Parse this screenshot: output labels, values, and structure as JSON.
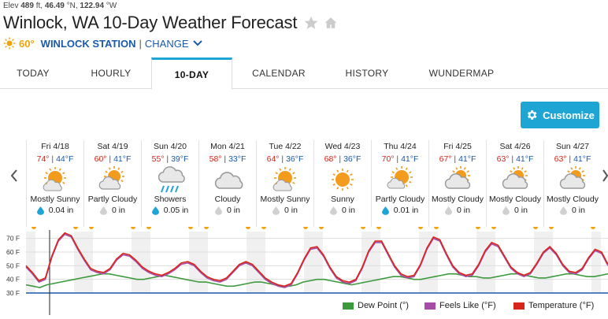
{
  "header": {
    "elev_label": "Elev",
    "elev_value": "489",
    "elev_unit": "ft,",
    "lat": "46.49",
    "lat_unit": "°N,",
    "lon": "122.94",
    "lon_unit": "°W",
    "title": "Winlock, WA 10-Day Weather Forecast",
    "current_temp": "60°",
    "station": "WINLOCK STATION",
    "separator": "|",
    "change_label": "CHANGE"
  },
  "tabs": [
    {
      "label": "TODAY",
      "active": false
    },
    {
      "label": "HOURLY",
      "active": false
    },
    {
      "label": "10-DAY",
      "active": true
    },
    {
      "label": "CALENDAR",
      "active": false
    },
    {
      "label": "HISTORY",
      "active": false
    },
    {
      "label": "WUNDERMAP",
      "active": false
    }
  ],
  "customize_label": "Customize",
  "days": [
    {
      "date": "Fri 4/18",
      "hi": "74°",
      "lo": "44°F",
      "cond": "Mostly Sunny",
      "icon": "mostly-sunny-icon",
      "precip": "0.04 in",
      "rain": true
    },
    {
      "date": "Sat 4/19",
      "hi": "60°",
      "lo": "41°F",
      "cond": "Partly Cloudy",
      "icon": "partly-cloudy-icon",
      "precip": "0 in",
      "rain": false
    },
    {
      "date": "Sun 4/20",
      "hi": "55°",
      "lo": "39°F",
      "cond": "Showers",
      "icon": "showers-icon",
      "precip": "0.05 in",
      "rain": true
    },
    {
      "date": "Mon 4/21",
      "hi": "58°",
      "lo": "33°F",
      "cond": "Cloudy",
      "icon": "cloudy-icon",
      "precip": "0 in",
      "rain": false
    },
    {
      "date": "Tue 4/22",
      "hi": "64°",
      "lo": "36°F",
      "cond": "Mostly Sunny",
      "icon": "mostly-sunny-icon",
      "precip": "0 in",
      "rain": false
    },
    {
      "date": "Wed 4/23",
      "hi": "68°",
      "lo": "36°F",
      "cond": "Sunny",
      "icon": "sunny-icon",
      "precip": "0 in",
      "rain": false
    },
    {
      "date": "Thu 4/24",
      "hi": "70°",
      "lo": "41°F",
      "cond": "Partly Cloudy",
      "icon": "partly-cloudy-sun-icon",
      "precip": "0.01 in",
      "rain": true
    },
    {
      "date": "Fri 4/25",
      "hi": "67°",
      "lo": "41°F",
      "cond": "Mostly Cloudy",
      "icon": "mostly-cloudy-icon",
      "precip": "0 in",
      "rain": false
    },
    {
      "date": "Sat 4/26",
      "hi": "63°",
      "lo": "41°F",
      "cond": "Mostly Cloudy",
      "icon": "mostly-cloudy-icon",
      "precip": "0 in",
      "rain": false
    },
    {
      "date": "Sun 4/27",
      "hi": "63°",
      "lo": "41°F",
      "cond": "Mostly Cloudy",
      "icon": "mostly-cloudy-icon",
      "precip": "0 in",
      "rain": false
    }
  ],
  "colors": {
    "accent": "#1ea5d4",
    "hi_temp": "#d9261c",
    "lo_temp": "#1a5aa8",
    "dew_point": "#3c9a3c",
    "feels_like": "#a64ca6",
    "temperature": "#d9261c"
  },
  "chart_data": {
    "type": "line",
    "yticks": [
      "70 F",
      "60 F",
      "50 F",
      "40 F",
      "30 F"
    ],
    "ylim": [
      30,
      75
    ],
    "grid": true,
    "legend_position": "bottom-right",
    "series": [
      {
        "name": "Dew Point (°)",
        "color": "#3c9a3c",
        "values": [
          36,
          35,
          34,
          36,
          37,
          38,
          39,
          40,
          41,
          42,
          43,
          44,
          44,
          43,
          42,
          41,
          40,
          40,
          41,
          42,
          43,
          42,
          41,
          40,
          39,
          38,
          38,
          37,
          36,
          35,
          35,
          36,
          37,
          38,
          38,
          37,
          36,
          35,
          35,
          36,
          38,
          39,
          40,
          40,
          39,
          38,
          37,
          36,
          37,
          38,
          39,
          40,
          41,
          42,
          42,
          41,
          40,
          40,
          41,
          42,
          43,
          44,
          44,
          43,
          42,
          42,
          41,
          41,
          42,
          43,
          44,
          44,
          43,
          42,
          41,
          41,
          42,
          43,
          44,
          44,
          43,
          42,
          42,
          43,
          44
        ]
      },
      {
        "name": "Feels Like (°F)",
        "color": "#a64ca6",
        "values": [
          49,
          44,
          38,
          40,
          56,
          68,
          73,
          71,
          62,
          54,
          47,
          45,
          44,
          47,
          54,
          58,
          57,
          53,
          48,
          45,
          43,
          42,
          44,
          47,
          51,
          52,
          50,
          45,
          41,
          39,
          38,
          40,
          45,
          50,
          52,
          50,
          45,
          40,
          37,
          35,
          34,
          36,
          44,
          54,
          62,
          63,
          57,
          48,
          41,
          38,
          37,
          39,
          48,
          60,
          67,
          67,
          58,
          49,
          43,
          41,
          42,
          50,
          62,
          70,
          68,
          58,
          49,
          44,
          42,
          43,
          50,
          60,
          66,
          64,
          56,
          48,
          44,
          42,
          44,
          51,
          59,
          63,
          58,
          50,
          45,
          44,
          47,
          55,
          61,
          59,
          50
        ]
      },
      {
        "name": "Temperature (°F)",
        "color": "#d9261c",
        "values": [
          50,
          45,
          39,
          41,
          57,
          69,
          74,
          72,
          63,
          55,
          48,
          46,
          45,
          48,
          55,
          59,
          58,
          54,
          49,
          46,
          44,
          43,
          45,
          48,
          52,
          53,
          51,
          46,
          42,
          40,
          39,
          41,
          46,
          51,
          53,
          51,
          46,
          41,
          38,
          36,
          35,
          37,
          45,
          55,
          63,
          64,
          58,
          49,
          42,
          39,
          38,
          40,
          49,
          61,
          68,
          68,
          59,
          50,
          44,
          42,
          43,
          51,
          63,
          71,
          69,
          59,
          50,
          45,
          43,
          44,
          51,
          61,
          67,
          65,
          57,
          49,
          45,
          43,
          45,
          52,
          60,
          64,
          59,
          51,
          46,
          45,
          48,
          56,
          62,
          60,
          51
        ]
      }
    ]
  }
}
